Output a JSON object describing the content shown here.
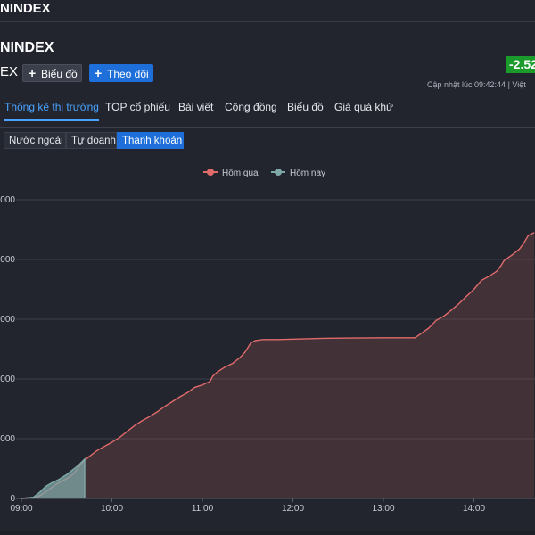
{
  "topbar": {
    "title": "NINDEX"
  },
  "header": {
    "title": "NINDEX",
    "code": "EX",
    "chart_button": "Biểu đồ",
    "follow_button": "Theo dõi",
    "change": "-2.52",
    "update_label": "Cập nhật lúc  09:42:44 | Việt"
  },
  "tabs": [
    "Thống kê thị trường",
    "TOP cổ phiếu",
    "Bài viết",
    "Cộng đồng",
    "Biểu đồ",
    "Giá quá khứ"
  ],
  "subtabs": [
    "Nước ngoài",
    "Tự doanh",
    "Thanh khoản"
  ],
  "colors": {
    "accent": "#1e6fd9",
    "up_badge": "#1a9b2c",
    "series_yesterday": "#e06b6b",
    "series_today": "#7fa8a8"
  },
  "chart_data": {
    "type": "area",
    "xlabel": "",
    "ylabel": "",
    "x_ticks": [
      "09:00",
      "10:00",
      "11:00",
      "12:00",
      "13:00",
      "14:00"
    ],
    "y_ticks": [
      "0",
      ",000",
      ",000",
      ",000",
      ",000",
      ",000"
    ],
    "x_range_minutes": [
      0,
      340
    ],
    "y_range": [
      0,
      500
    ],
    "legend": [
      "Hôm qua",
      "Hôm nay"
    ],
    "legend_position": "top",
    "grid": true,
    "series": [
      {
        "name": "Hôm qua",
        "points": [
          [
            0,
            0
          ],
          [
            10,
            2
          ],
          [
            13,
            6
          ],
          [
            18,
            14
          ],
          [
            22,
            22
          ],
          [
            26,
            28
          ],
          [
            30,
            33
          ],
          [
            35,
            42
          ],
          [
            40,
            60
          ],
          [
            45,
            70
          ],
          [
            50,
            80
          ],
          [
            55,
            87
          ],
          [
            60,
            94
          ],
          [
            65,
            102
          ],
          [
            70,
            112
          ],
          [
            75,
            122
          ],
          [
            80,
            130
          ],
          [
            85,
            137
          ],
          [
            90,
            145
          ],
          [
            95,
            154
          ],
          [
            100,
            162
          ],
          [
            105,
            170
          ],
          [
            110,
            177
          ],
          [
            115,
            186
          ],
          [
            120,
            190
          ],
          [
            125,
            196
          ],
          [
            127,
            205
          ],
          [
            130,
            212
          ],
          [
            135,
            220
          ],
          [
            140,
            226
          ],
          [
            145,
            236
          ],
          [
            148,
            244
          ],
          [
            150,
            252
          ],
          [
            152,
            260
          ],
          [
            155,
            264
          ],
          [
            160,
            266
          ],
          [
            170,
            266
          ],
          [
            200,
            268
          ],
          [
            240,
            269
          ],
          [
            261,
            269
          ],
          [
            265,
            276
          ],
          [
            270,
            285
          ],
          [
            275,
            298
          ],
          [
            280,
            305
          ],
          [
            285,
            315
          ],
          [
            290,
            326
          ],
          [
            295,
            338
          ],
          [
            300,
            350
          ],
          [
            305,
            365
          ],
          [
            310,
            372
          ],
          [
            315,
            380
          ],
          [
            318,
            390
          ],
          [
            320,
            398
          ],
          [
            325,
            407
          ],
          [
            330,
            417
          ],
          [
            333,
            427
          ],
          [
            336,
            440
          ],
          [
            340,
            445
          ]
        ]
      },
      {
        "name": "Hôm nay",
        "points": [
          [
            0,
            0
          ],
          [
            8,
            2
          ],
          [
            12,
            10
          ],
          [
            16,
            20
          ],
          [
            20,
            26
          ],
          [
            25,
            32
          ],
          [
            30,
            40
          ],
          [
            35,
            50
          ],
          [
            38,
            56
          ],
          [
            42,
            66
          ],
          [
            42,
            0
          ]
        ]
      }
    ]
  }
}
